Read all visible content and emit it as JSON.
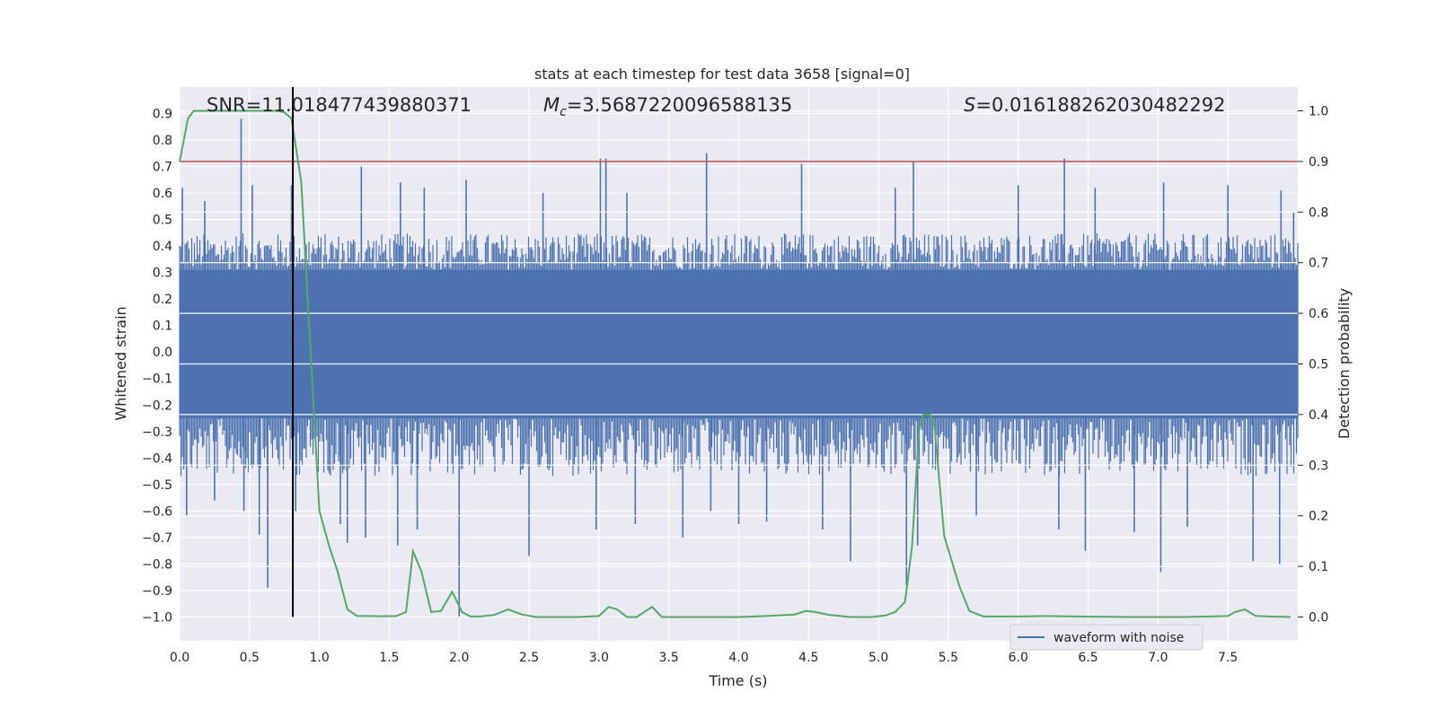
{
  "chart_data": {
    "type": "line",
    "title": "stats at each timestep for test data 3658 [signal=0]",
    "xlabel": "Time (s)",
    "ylabel": "Whitened strain",
    "y2label": "Detection probability",
    "xlim": [
      0.0,
      8.0
    ],
    "ylim": [
      -1.09,
      1.0
    ],
    "y2lim": [
      -0.047,
      1.047
    ],
    "xticks": [
      0.0,
      0.5,
      1.0,
      1.5,
      2.0,
      2.5,
      3.0,
      3.5,
      4.0,
      4.5,
      5.0,
      5.5,
      6.0,
      6.5,
      7.0,
      7.5
    ],
    "xtick_labels": [
      "0.0",
      "0.5",
      "1.0",
      "1.5",
      "2.0",
      "2.5",
      "3.0",
      "3.5",
      "4.0",
      "4.5",
      "5.0",
      "5.5",
      "6.0",
      "6.5",
      "7.0",
      "7.5"
    ],
    "yticks": [
      0.9,
      0.8,
      0.7,
      0.6,
      0.5,
      0.4,
      0.3,
      0.2,
      0.1,
      0.0,
      -0.1,
      -0.2,
      -0.3,
      -0.4,
      -0.5,
      -0.6,
      -0.7,
      -0.8,
      -0.9,
      -1.0
    ],
    "ytick_labels": [
      "0.9",
      "0.8",
      "0.7",
      "0.6",
      "0.5",
      "0.4",
      "0.3",
      "0.2",
      "0.1",
      "0.0",
      "−0.1",
      "−0.2",
      "−0.3",
      "−0.4",
      "−0.5",
      "−0.6",
      "−0.7",
      "−0.8",
      "−0.9",
      "−1.0"
    ],
    "y2ticks": [
      1.0,
      0.9,
      0.8,
      0.7,
      0.6,
      0.5,
      0.4,
      0.3,
      0.2,
      0.1,
      0.0
    ],
    "y2tick_labels": [
      "1.0",
      "0.9",
      "0.8",
      "0.7",
      "0.6",
      "0.5",
      "0.4",
      "0.3",
      "0.2",
      "0.1",
      "0.0"
    ],
    "grid": true,
    "legend": {
      "location": "bottom-right",
      "entries": [
        {
          "label": "waveform with noise",
          "color": "#4c72b0"
        }
      ]
    },
    "annotations": {
      "snr": {
        "prefix": "SNR=",
        "value": "11.018477439880371"
      },
      "mc": {
        "symbol": "M",
        "subscript": "c",
        "value": "=3.5687220096588135"
      },
      "s": {
        "symbol": "S",
        "value": "=0.016188262030482292"
      }
    },
    "threshold": {
      "axis": "y2",
      "value": 0.9,
      "color": "#c44e52"
    },
    "marker_line": {
      "x": 0.81,
      "y_from": -1.0,
      "y_to": 1.0,
      "color": "#000000"
    },
    "waveform": {
      "name": "waveform with noise",
      "color": "#4c72b0",
      "envelope_typical": [
        -0.44,
        0.43
      ],
      "envelope_core": [
        -0.25,
        0.31
      ],
      "spikes": [
        {
          "x": 0.02,
          "y": 0.62
        },
        {
          "x": 0.05,
          "y": -0.62
        },
        {
          "x": 0.18,
          "y": 0.57
        },
        {
          "x": 0.25,
          "y": -0.56
        },
        {
          "x": 0.44,
          "y": 0.88
        },
        {
          "x": 0.46,
          "y": -0.6
        },
        {
          "x": 0.52,
          "y": 0.63
        },
        {
          "x": 0.57,
          "y": -0.69
        },
        {
          "x": 0.63,
          "y": -0.89
        },
        {
          "x": 0.8,
          "y": 0.63
        },
        {
          "x": 0.83,
          "y": -0.6
        },
        {
          "x": 1.15,
          "y": -0.65
        },
        {
          "x": 1.2,
          "y": -0.72
        },
        {
          "x": 1.3,
          "y": 0.7
        },
        {
          "x": 1.33,
          "y": -0.7
        },
        {
          "x": 1.56,
          "y": -0.73
        },
        {
          "x": 1.58,
          "y": 0.64
        },
        {
          "x": 1.7,
          "y": -0.67
        },
        {
          "x": 1.75,
          "y": 0.62
        },
        {
          "x": 2.0,
          "y": -1.0
        },
        {
          "x": 2.05,
          "y": 0.65
        },
        {
          "x": 2.5,
          "y": -0.77
        },
        {
          "x": 2.6,
          "y": 0.6
        },
        {
          "x": 2.98,
          "y": -0.67
        },
        {
          "x": 3.01,
          "y": 0.73
        },
        {
          "x": 3.05,
          "y": 0.73
        },
        {
          "x": 3.2,
          "y": 0.6
        },
        {
          "x": 3.26,
          "y": -0.65
        },
        {
          "x": 3.6,
          "y": -0.7
        },
        {
          "x": 3.77,
          "y": 0.75
        },
        {
          "x": 3.8,
          "y": -0.6
        },
        {
          "x": 4.0,
          "y": -0.65
        },
        {
          "x": 4.2,
          "y": -0.64
        },
        {
          "x": 4.45,
          "y": 0.71
        },
        {
          "x": 4.6,
          "y": -0.67
        },
        {
          "x": 4.8,
          "y": -0.79
        },
        {
          "x": 5.12,
          "y": 0.62
        },
        {
          "x": 5.2,
          "y": -0.88
        },
        {
          "x": 5.25,
          "y": 0.72
        },
        {
          "x": 5.28,
          "y": -0.73
        },
        {
          "x": 5.7,
          "y": -0.62
        },
        {
          "x": 6.0,
          "y": 0.63
        },
        {
          "x": 6.29,
          "y": -0.67
        },
        {
          "x": 6.33,
          "y": 0.73
        },
        {
          "x": 6.48,
          "y": -0.75
        },
        {
          "x": 6.55,
          "y": 0.62
        },
        {
          "x": 6.83,
          "y": -0.68
        },
        {
          "x": 7.02,
          "y": -0.83
        },
        {
          "x": 7.04,
          "y": 0.64
        },
        {
          "x": 7.21,
          "y": -0.66
        },
        {
          "x": 7.5,
          "y": 0.63
        },
        {
          "x": 7.68,
          "y": -0.79
        },
        {
          "x": 7.87,
          "y": -0.8
        },
        {
          "x": 7.88,
          "y": 0.61
        },
        {
          "x": 7.97,
          "y": 0.53
        }
      ]
    },
    "detection_probability": {
      "color": "#55a868",
      "x": [
        0.0,
        0.06,
        0.1,
        0.2,
        0.3,
        0.4,
        0.5,
        0.6,
        0.7,
        0.75,
        0.8,
        0.87,
        0.93,
        1.0,
        1.07,
        1.13,
        1.2,
        1.27,
        1.35,
        1.45,
        1.55,
        1.62,
        1.67,
        1.73,
        1.8,
        1.87,
        1.95,
        2.02,
        2.08,
        2.15,
        2.25,
        2.35,
        2.45,
        2.55,
        2.7,
        2.85,
        3.0,
        3.07,
        3.13,
        3.2,
        3.27,
        3.38,
        3.45,
        3.55,
        3.7,
        3.85,
        4.0,
        4.2,
        4.4,
        4.48,
        4.55,
        4.65,
        4.8,
        4.95,
        5.05,
        5.12,
        5.19,
        5.24,
        5.29,
        5.32,
        5.37,
        5.4,
        5.47,
        5.58,
        5.65,
        5.75,
        6.0,
        6.2,
        6.4,
        6.8,
        7.2,
        7.5,
        7.55,
        7.62,
        7.7,
        7.8,
        7.95
      ],
      "y": [
        0.9,
        0.985,
        1.0,
        1.0,
        1.0,
        1.0,
        1.0,
        1.0,
        1.0,
        0.997,
        0.985,
        0.86,
        0.56,
        0.21,
        0.14,
        0.09,
        0.015,
        0.002,
        0.002,
        0.0015,
        0.002,
        0.01,
        0.13,
        0.09,
        0.01,
        0.012,
        0.05,
        0.01,
        0.001,
        0.001,
        0.004,
        0.015,
        0.005,
        0.0,
        0.0,
        0.0,
        0.002,
        0.02,
        0.015,
        0.0,
        0.0,
        0.02,
        0.0,
        0.0,
        0.0,
        0.0,
        0.0,
        0.002,
        0.005,
        0.012,
        0.01,
        0.004,
        0.0,
        0.0,
        0.003,
        0.01,
        0.03,
        0.14,
        0.37,
        0.4,
        0.4,
        0.38,
        0.16,
        0.06,
        0.012,
        0.001,
        0.001,
        0.002,
        0.001,
        0.0,
        0.0,
        0.002,
        0.01,
        0.015,
        0.002,
        0.001,
        0.0
      ]
    }
  }
}
